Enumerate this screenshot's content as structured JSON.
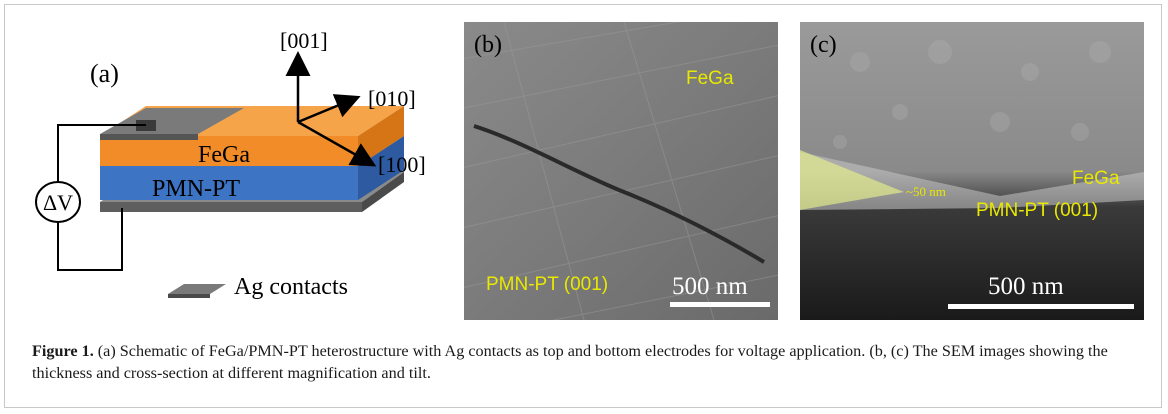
{
  "panel_a": {
    "label": "(a)",
    "axis_001": "[001]",
    "axis_010": "[010]",
    "axis_100": "[100]",
    "layer_top": "FeGa",
    "layer_bottom": "PMN-PT",
    "voltage": "ΔV",
    "legend": "Ag contacts",
    "colors": {
      "fega": "#f28c28",
      "pmnpt": "#3d74c4",
      "contact": "#707070"
    }
  },
  "panel_b": {
    "label": "(b)",
    "text_top": "FeGa",
    "text_bottom": "PMN-PT (001)",
    "scale": "500 nm"
  },
  "panel_c": {
    "label": "(c)",
    "thickness": "~50 nm",
    "text_fega": "FeGa",
    "text_pmnpt": "PMN-PT (001)",
    "scale": "500 nm"
  },
  "caption": {
    "lead": "Figure 1.",
    "text": " (a) Schematic of FeGa/PMN-PT heterostructure with Ag contacts as top and bottom electrodes for voltage application. (b, (c) The SEM images showing the thickness and cross-section at different magnification and tilt."
  }
}
